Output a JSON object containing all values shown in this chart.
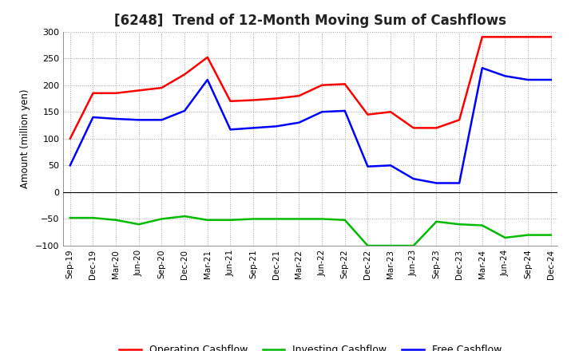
{
  "title": "[6248]  Trend of 12-Month Moving Sum of Cashflows",
  "ylabel": "Amount (million yen)",
  "x_labels": [
    "Sep-19",
    "Dec-19",
    "Mar-20",
    "Jun-20",
    "Sep-20",
    "Dec-20",
    "Mar-21",
    "Jun-21",
    "Sep-21",
    "Dec-21",
    "Mar-22",
    "Jun-22",
    "Sep-22",
    "Dec-22",
    "Mar-23",
    "Jun-23",
    "Sep-23",
    "Dec-23",
    "Mar-24",
    "Jun-24",
    "Sep-24",
    "Dec-24"
  ],
  "operating_cashflow": [
    100,
    185,
    185,
    190,
    195,
    220,
    252,
    170,
    172,
    175,
    180,
    200,
    202,
    145,
    150,
    120,
    120,
    135,
    290,
    290,
    290,
    290
  ],
  "investing_cashflow": [
    -48,
    -48,
    -52,
    -60,
    -50,
    -45,
    -52,
    -52,
    -50,
    -50,
    -50,
    -50,
    -52,
    -100,
    -100,
    -100,
    -55,
    -60,
    -62,
    -85,
    -80,
    -80
  ],
  "free_cashflow": [
    50,
    140,
    137,
    135,
    135,
    152,
    210,
    117,
    120,
    123,
    130,
    150,
    152,
    48,
    50,
    25,
    17,
    17,
    232,
    217,
    210,
    210
  ],
  "ylim": [
    -100,
    300
  ],
  "yticks": [
    -100,
    -50,
    0,
    50,
    100,
    150,
    200,
    250,
    300
  ],
  "operating_color": "#FF0000",
  "investing_color": "#00BB00",
  "free_color": "#0000FF",
  "background_color": "#FFFFFF",
  "grid_color": "#999999",
  "title_fontsize": 12,
  "legend_labels": [
    "Operating Cashflow",
    "Investing Cashflow",
    "Free Cashflow"
  ]
}
